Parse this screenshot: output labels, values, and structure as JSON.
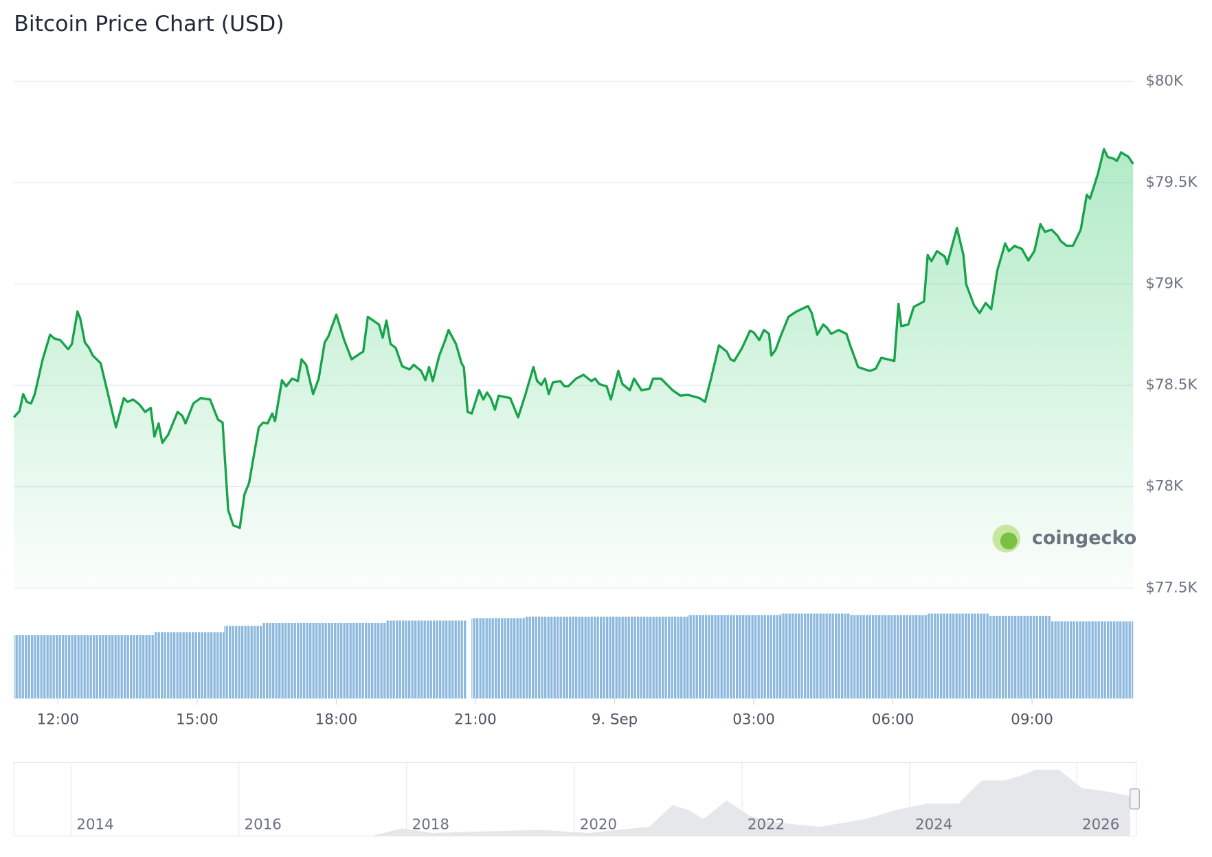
{
  "chart_data": {
    "type": "line",
    "title": "Bitcoin Price Chart (USD)",
    "color": "#16a34a",
    "xlim": [
      11.05,
      35.18
    ],
    "xticks": [
      {
        "value": 12,
        "label": "12:00"
      },
      {
        "value": 15,
        "label": "15:00"
      },
      {
        "value": 18,
        "label": "18:00"
      },
      {
        "value": 21,
        "label": "21:00"
      },
      {
        "value": 24,
        "label": "9. Sep"
      },
      {
        "value": 27,
        "label": "03:00"
      },
      {
        "value": 30,
        "label": "06:00"
      },
      {
        "value": 33,
        "label": "09:00"
      }
    ],
    "ylim": [
      77500,
      80000
    ],
    "yticks": [
      {
        "value": 77500,
        "label": "$77.5K"
      },
      {
        "value": 78000,
        "label": "$78K"
      },
      {
        "value": 78500,
        "label": "$78.5K"
      },
      {
        "value": 79000,
        "label": "$79K"
      },
      {
        "value": 79500,
        "label": "$79.5K"
      },
      {
        "value": 80000,
        "label": "$80K"
      }
    ],
    "grid": true,
    "x": [
      11.05,
      11.17,
      11.25,
      11.33,
      11.42,
      11.5,
      11.67,
      11.83,
      11.92,
      12.05,
      12.22,
      12.3,
      12.42,
      12.48,
      12.58,
      12.67,
      12.75,
      12.92,
      13.25,
      13.42,
      13.5,
      13.62,
      13.75,
      13.88,
      14,
      14.08,
      14.17,
      14.25,
      14.38,
      14.58,
      14.68,
      14.75,
      14.92,
      15.08,
      15.28,
      15.45,
      15.55,
      15.67,
      15.78,
      15.92,
      16.02,
      16.12,
      16.33,
      16.42,
      16.52,
      16.62,
      16.68,
      16.83,
      16.92,
      17.05,
      17.17,
      17.25,
      17.35,
      17.5,
      17.62,
      17.75,
      17.83,
      18,
      18.17,
      18.33,
      18.5,
      18.58,
      18.68,
      18.92,
      19,
      19.08,
      19.17,
      19.28,
      19.42,
      19.58,
      19.67,
      19.83,
      19.92,
      20,
      20.08,
      20.22,
      20.33,
      20.42,
      20.58,
      20.7,
      20.75,
      20.83,
      20.92,
      21.08,
      21.17,
      21.25,
      21.33,
      21.42,
      21.5,
      21.75,
      21.92,
      22.08,
      22.25,
      22.33,
      22.42,
      22.5,
      22.58,
      22.67,
      22.83,
      22.92,
      23,
      23.17,
      23.33,
      23.5,
      23.58,
      23.67,
      23.83,
      23.92,
      24.08,
      24.17,
      24.33,
      24.42,
      24.58,
      24.75,
      24.83,
      25,
      25.25,
      25.42,
      25.58,
      25.83,
      25.95,
      26.08,
      26.25,
      26.42,
      26.5,
      26.58,
      26.75,
      26.92,
      27,
      27.12,
      27.22,
      27.33,
      27.38,
      27.47,
      27.58,
      27.75,
      27.92,
      28.17,
      28.25,
      28.37,
      28.5,
      28.58,
      28.67,
      28.83,
      29,
      29.08,
      29.25,
      29.5,
      29.63,
      29.75,
      30.03,
      30.12,
      30.18,
      30.33,
      30.45,
      30.67,
      30.75,
      30.83,
      30.95,
      31.12,
      31.17,
      31.28,
      31.38,
      31.52,
      31.58,
      31.75,
      31.87,
      32,
      32.12,
      32.25,
      32.42,
      32.5,
      32.62,
      32.78,
      32.92,
      33.05,
      33.18,
      33.28,
      33.42,
      33.55,
      33.62,
      33.75,
      33.88,
      34.05,
      34.18,
      34.25,
      34.33,
      34.42,
      34.55,
      34.63,
      34.75,
      34.83,
      34.92,
      35.08,
      35.18
    ],
    "values": [
      78342,
      78373,
      78457,
      78418,
      78411,
      78457,
      78628,
      78750,
      78731,
      78723,
      78678,
      78704,
      78864,
      78830,
      78712,
      78685,
      78647,
      78609,
      78293,
      78437,
      78418,
      78430,
      78407,
      78369,
      78388,
      78247,
      78312,
      78216,
      78258,
      78369,
      78350,
      78312,
      78411,
      78437,
      78430,
      78331,
      78316,
      77885,
      77809,
      77797,
      77961,
      78018,
      78293,
      78316,
      78312,
      78361,
      78323,
      78525,
      78495,
      78533,
      78521,
      78628,
      78601,
      78457,
      78533,
      78712,
      78742,
      78849,
      78723,
      78628,
      78655,
      78666,
      78838,
      78800,
      78735,
      78819,
      78704,
      78685,
      78594,
      78578,
      78601,
      78571,
      78525,
      78590,
      78521,
      78647,
      78712,
      78773,
      78704,
      78609,
      78590,
      78369,
      78361,
      78476,
      78430,
      78464,
      78437,
      78380,
      78449,
      78437,
      78342,
      78457,
      78590,
      78521,
      78502,
      78533,
      78457,
      78514,
      78521,
      78495,
      78495,
      78533,
      78552,
      78521,
      78533,
      78506,
      78495,
      78430,
      78571,
      78506,
      78476,
      78533,
      78476,
      78483,
      78533,
      78533,
      78476,
      78449,
      78453,
      78437,
      78418,
      78533,
      78697,
      78666,
      78628,
      78620,
      78685,
      78769,
      78761,
      78723,
      78773,
      78754,
      78647,
      78674,
      78742,
      78838,
      78864,
      78891,
      78857,
      78750,
      78800,
      78784,
      78754,
      78773,
      78754,
      78697,
      78590,
      78571,
      78582,
      78636,
      78620,
      78902,
      78792,
      78800,
      78887,
      78914,
      79143,
      79112,
      79162,
      79135,
      79097,
      79192,
      79276,
      79143,
      78998,
      78895,
      78857,
      78906,
      78876,
      79066,
      79200,
      79162,
      79188,
      79173,
      79116,
      79162,
      79295,
      79257,
      79268,
      79238,
      79211,
      79188,
      79188,
      79268,
      79440,
      79421,
      79478,
      79543,
      79665,
      79627,
      79619,
      79607,
      79649,
      79627,
      79592
    ],
    "watermark": "coingecko",
    "navigator": {
      "labels": [
        "2014",
        "2016",
        "2018",
        "2020",
        "2022",
        "2024",
        "2026"
      ]
    }
  }
}
